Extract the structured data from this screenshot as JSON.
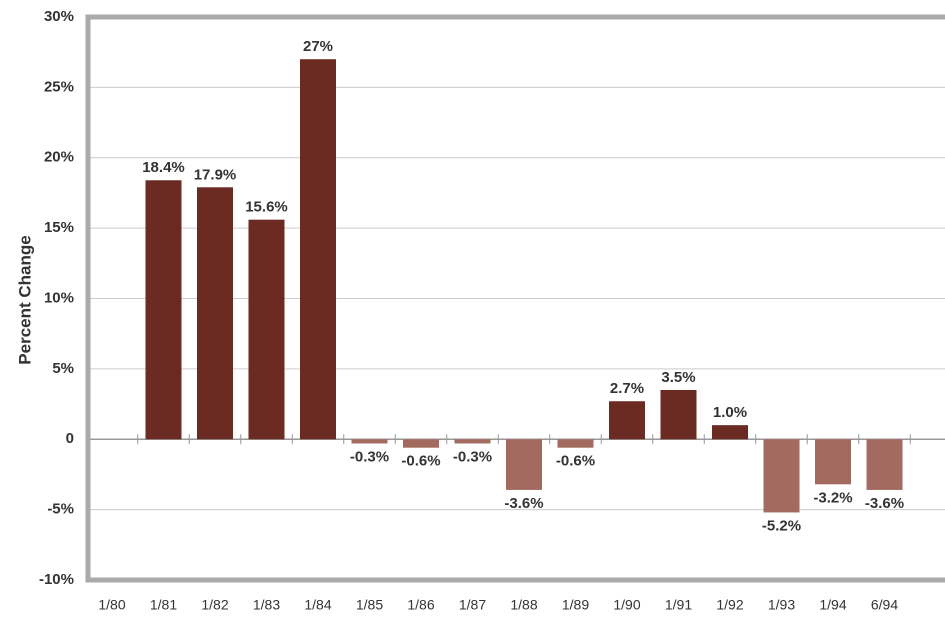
{
  "chart_data": {
    "type": "bar",
    "y_label": "Percent Change",
    "categories": [
      "1/80",
      "1/81",
      "1/82",
      "1/83",
      "1/84",
      "1/85",
      "1/86",
      "1/87",
      "1/88",
      "1/89",
      "1/90",
      "1/91",
      "1/92",
      "1/93",
      "1/94",
      "6/94"
    ],
    "values": [
      null,
      18.4,
      17.9,
      15.6,
      27,
      -0.3,
      -0.6,
      -0.3,
      -3.6,
      -0.6,
      2.7,
      3.5,
      1.0,
      -5.2,
      -3.2,
      -3.6
    ],
    "value_labels": [
      null,
      "18.4%",
      "17.9%",
      "15.6%",
      "27%",
      "-0.3%",
      "-0.6%",
      "-0.3%",
      "-3.6%",
      "-0.6%",
      "2.7%",
      "3.5%",
      "1.0%",
      "-5.2%",
      "-3.2%",
      "-3.6%"
    ],
    "color": "#6b2a22",
    "negative_color": "#a36a60",
    "ylim": [
      -10,
      30
    ],
    "yticks": [
      {
        "value": -10,
        "label": "-10%"
      },
      {
        "value": -5,
        "label": "-5%"
      },
      0,
      {
        "value": 5,
        "label": "5%"
      },
      {
        "value": 10,
        "label": "10%"
      },
      {
        "value": 15,
        "label": "15%"
      },
      {
        "value": 20,
        "label": "20%"
      },
      {
        "value": 25,
        "label": "25%"
      },
      {
        "value": 30,
        "label": "30%"
      }
    ],
    "grid": true
  }
}
